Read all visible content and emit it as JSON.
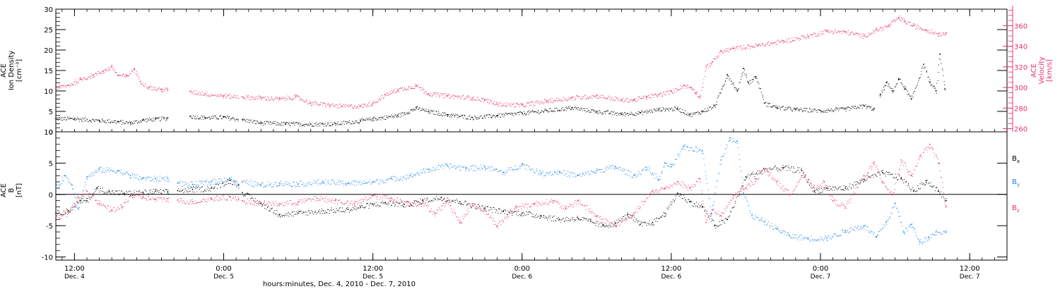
{
  "colors": {
    "black": "#000000",
    "pink": "#e8336a",
    "blue": "#1a82e6"
  },
  "xaxis": {
    "label": "hours:minutes, Dec. 4, 2010 - Dec. 7, 2010",
    "range_hours": [
      10.5,
      87.0
    ],
    "ticks": [
      {
        "h": 12,
        "time": "12:00",
        "day": "Dec. 4"
      },
      {
        "h": 24,
        "time": "0:00",
        "day": "Dec. 5"
      },
      {
        "h": 36,
        "time": "12:00",
        "day": "Dec. 5"
      },
      {
        "h": 48,
        "time": "0:00",
        "day": "Dec. 6"
      },
      {
        "h": 60,
        "time": "12:00",
        "day": "Dec. 6"
      },
      {
        "h": 72,
        "time": "0:00",
        "day": "Dec. 7"
      },
      {
        "h": 84,
        "time": "12:00",
        "day": "Dec. 7"
      }
    ]
  },
  "chart_data": [
    {
      "type": "scatter",
      "panel": "top",
      "ylabel_lines": [
        "ACE",
        "Ion Density",
        "[cm⁻³]"
      ],
      "ylim": [
        0,
        30
      ],
      "yticks": [
        0,
        5,
        10,
        15,
        20,
        25,
        30
      ],
      "y2label_lines": [
        "ACE",
        "Velocity",
        "[km/s]"
      ],
      "y2lim": [
        257,
        376
      ],
      "y2ticks": [
        260,
        280,
        300,
        320,
        340,
        360
      ],
      "series": [
        {
          "color": "#000000",
          "axis": "left",
          "gaps": [
            [
              19.5,
              21.3
            ],
            [
              25.2,
              25.5
            ],
            [
              76.3,
              76.7
            ]
          ],
          "x": [
            10.5,
            12,
            14,
            15.5,
            16.5,
            17.5,
            18.5,
            19.5,
            21.3,
            22.5,
            24,
            25.5,
            27,
            29,
            31,
            33,
            35,
            36,
            38,
            39.5,
            40.5,
            42,
            44,
            46,
            48,
            50,
            52,
            54,
            56,
            57.5,
            59,
            60.5,
            61.5,
            62.5,
            63.5,
            64.5,
            65.3,
            65.8,
            66.2,
            66.8,
            67.5,
            68.5,
            70,
            72,
            74,
            75.5,
            76.3,
            76.8,
            77.3,
            77.8,
            78.3,
            78.8,
            79.3,
            80.3,
            80.8,
            81.3,
            81.6,
            82
          ],
          "y": [
            3.3,
            3.2,
            2.8,
            2.5,
            2.2,
            2.9,
            3.1,
            3.4,
            3.8,
            3.5,
            3.6,
            3.0,
            2.2,
            2.0,
            1.9,
            2.0,
            2.7,
            3.2,
            4.0,
            5.8,
            5.0,
            4.2,
            3.5,
            4.0,
            4.6,
            5.2,
            5.9,
            5.0,
            4.4,
            4.7,
            5.5,
            5.7,
            4.2,
            5.0,
            6.4,
            14.0,
            10.0,
            15.5,
            12.0,
            13.5,
            7.0,
            6.0,
            5.5,
            5.2,
            5.6,
            6.4,
            5.6,
            9.0,
            12.0,
            10.0,
            13.0,
            10.5,
            8.0,
            16.5,
            12.0,
            10.0,
            19.0,
            10.5
          ]
        },
        {
          "color": "#e8336a",
          "axis": "right",
          "gaps": [
            [
              19.5,
              21.3
            ],
            [
              25.2,
              25.5
            ],
            [
              82.1,
              87
            ]
          ],
          "x": [
            10.5,
            11.5,
            12.5,
            13.5,
            14.3,
            15,
            15.5,
            16.2,
            16.8,
            17.3,
            18,
            19,
            19.5,
            21.3,
            22.5,
            24,
            25.5,
            27,
            28.5,
            29.8,
            31,
            32.5,
            33.5,
            35,
            36,
            37,
            38,
            39.5,
            40.5,
            42,
            44,
            45,
            46,
            48,
            50,
            52,
            54,
            56,
            57,
            58,
            59,
            60,
            61,
            61.6,
            62,
            62.3,
            62.8,
            63.3,
            64,
            65,
            67,
            69,
            71,
            72.5,
            74,
            75.5,
            76.5,
            77.5,
            78.3,
            78.8,
            79.5,
            80.5,
            81.5,
            82.1
          ],
          "y": [
            300,
            302,
            308,
            312,
            316,
            320,
            312,
            311,
            318,
            306,
            300,
            298,
            298,
            296,
            294,
            292,
            291,
            290,
            289,
            291,
            285,
            283,
            282,
            282,
            285,
            293,
            298,
            302,
            294,
            292,
            290,
            288,
            284,
            283,
            287,
            290,
            292,
            288,
            288,
            291,
            293,
            296,
            302,
            300,
            295,
            291,
            320,
            325,
            335,
            338,
            341,
            345,
            350,
            355,
            354,
            350,
            356,
            360,
            368,
            364,
            360,
            356,
            352,
            353
          ]
        }
      ]
    },
    {
      "type": "scatter",
      "panel": "bottom",
      "ylabel_lines": [
        "ACE",
        "B",
        "[nT]"
      ],
      "ylim": [
        -10.5,
        10
      ],
      "yticks": [
        -10,
        -5,
        0,
        5,
        10
      ],
      "series": [
        {
          "name": "Bx",
          "label": "B",
          "sub": "x",
          "color": "#000000",
          "gaps": [
            [
              19.6,
              20.3
            ],
            [
              25.2,
              25.5
            ],
            [
              82.1,
              87
            ]
          ],
          "x": [
            10.5,
            11.5,
            12.5,
            13,
            13.8,
            14.8,
            16,
            17.5,
            18.5,
            19.5,
            20.3,
            21.5,
            23,
            24.5,
            25.2,
            25.5,
            27,
            28.5,
            30,
            32,
            34,
            35,
            36,
            37,
            38.5,
            40,
            41.5,
            43,
            45,
            46.5,
            48,
            49.5,
            51,
            52.5,
            53.5,
            54.5,
            55.5,
            56.5,
            57.5,
            58.5,
            59.5,
            60.5,
            61.5,
            62.5,
            63.5,
            64.5,
            66,
            67.5,
            69,
            70.5,
            71.5,
            72.5,
            74,
            75.5,
            77,
            78.5,
            79.5,
            80.5,
            81.5,
            82.1
          ],
          "y": [
            -3.0,
            -2.6,
            -1.0,
            -1.0,
            1.0,
            0.4,
            0.2,
            0.3,
            0.5,
            0.4,
            0.6,
            0.8,
            1.0,
            2.2,
            1.5,
            0.3,
            -1.5,
            -3.2,
            -3.0,
            -2.6,
            -2.4,
            -2.0,
            -1.6,
            -1.3,
            -1.6,
            -1.0,
            -0.5,
            -1.2,
            -2.2,
            -2.7,
            -3.0,
            -3.4,
            -4.0,
            -3.8,
            -4.3,
            -5.0,
            -4.6,
            -3.2,
            -4.8,
            -4.5,
            -3.0,
            0.2,
            -1.2,
            -2.0,
            -5.0,
            -4.0,
            2.8,
            4.0,
            4.3,
            3.8,
            0.5,
            1.0,
            1.0,
            2.4,
            3.5,
            2.6,
            0.5,
            2.2,
            0.5,
            -1.0
          ]
        },
        {
          "name": "By",
          "label": "B",
          "sub": "y",
          "color": "#1a82e6",
          "gaps": [
            [
              19.6,
              20.3
            ],
            [
              25.2,
              25.5
            ],
            [
              82.1,
              87
            ]
          ],
          "x": [
            10.5,
            11.2,
            11.8,
            12.3,
            13,
            14,
            15.5,
            16.5,
            17.5,
            18.5,
            19.5,
            20.3,
            21.5,
            23,
            24.5,
            25.2,
            25.5,
            27,
            28.5,
            30,
            32,
            34,
            36,
            37.5,
            39,
            40.5,
            42,
            43.5,
            45,
            46.5,
            48,
            49.5,
            51,
            52.5,
            54,
            55.5,
            57,
            58,
            59,
            59.5,
            60,
            61,
            62.5,
            63.2,
            64,
            64.7,
            65.3,
            65.8,
            66.5,
            67.5,
            68.5,
            69.5,
            71,
            72.5,
            74,
            75.5,
            76.5,
            77.3,
            78,
            78.7,
            79.3,
            80,
            80.7,
            81.3,
            82.1
          ],
          "y": [
            1.0,
            3.0,
            1.5,
            -2.2,
            2.8,
            4.0,
            3.8,
            3.0,
            2.6,
            2.5,
            2.6,
            1.8,
            1.6,
            2.0,
            2.6,
            1.6,
            2.0,
            1.5,
            1.8,
            1.7,
            2.0,
            1.8,
            2.0,
            2.5,
            3.0,
            4.0,
            4.6,
            4.2,
            4.4,
            3.5,
            4.8,
            3.4,
            3.6,
            3.0,
            3.8,
            4.4,
            3.0,
            4.3,
            2.4,
            5.0,
            4.4,
            7.6,
            7.0,
            -3.0,
            5.5,
            9.0,
            8.5,
            0.2,
            -3.4,
            -4.4,
            -5.5,
            -6.6,
            -7.0,
            -7.0,
            -5.8,
            -5.0,
            -6.8,
            -4.4,
            -1.5,
            -6.0,
            -4.8,
            -7.6,
            -6.8,
            -6.0,
            -6.0
          ]
        },
        {
          "name": "Bz",
          "label": "B",
          "sub": "z",
          "color": "#e8336a",
          "gaps": [
            [
              19.6,
              20.3
            ],
            [
              25.2,
              25.5
            ],
            [
              82.1,
              87
            ]
          ],
          "x": [
            10.5,
            11.5,
            12.3,
            13,
            14,
            15,
            15.8,
            16.5,
            17.5,
            18.5,
            19.5,
            20.3,
            21.5,
            23,
            24.5,
            25.2,
            25.5,
            27,
            28.5,
            30,
            31.5,
            33,
            34.5,
            36,
            37.5,
            39,
            40,
            41,
            42,
            43,
            44,
            45,
            46,
            47.5,
            49,
            50.5,
            51.5,
            52.5,
            54,
            55.5,
            57,
            58.5,
            59.5,
            60.5,
            61.5,
            62.3,
            62.8,
            63.3,
            64,
            65,
            66,
            66.8,
            67.5,
            68.5,
            69.5,
            70.5,
            71.5,
            72.3,
            73,
            74,
            75.5,
            76.3,
            77,
            77.8,
            78.5,
            79.3,
            80,
            80.8,
            81.5,
            82.1
          ],
          "y": [
            -3.5,
            -3.0,
            -0.5,
            0.5,
            -1.5,
            -2.5,
            -2.0,
            -0.2,
            -0.4,
            -0.8,
            -0.7,
            -0.9,
            -1.2,
            -0.7,
            -0.4,
            -0.8,
            -1.0,
            -1.4,
            -1.5,
            -1.2,
            -0.6,
            -1.0,
            -1.5,
            -0.2,
            -0.6,
            -1.5,
            -1.4,
            -3.0,
            -1.0,
            -4.5,
            -1.5,
            -2.5,
            -5.0,
            -2.0,
            -1.5,
            -1.0,
            -2.3,
            -1.0,
            -3.5,
            -5.0,
            -3.0,
            0.5,
            1.0,
            2.0,
            1.0,
            2.5,
            -4.5,
            -2.5,
            -3.4,
            -0.2,
            1.0,
            2.5,
            4.0,
            2.0,
            0.0,
            3.0,
            1.0,
            2.0,
            -1.0,
            -2.0,
            3.0,
            5.0,
            2.0,
            0.0,
            5.5,
            3.0,
            6.0,
            8.0,
            5.0,
            -2.0
          ]
        }
      ]
    }
  ]
}
